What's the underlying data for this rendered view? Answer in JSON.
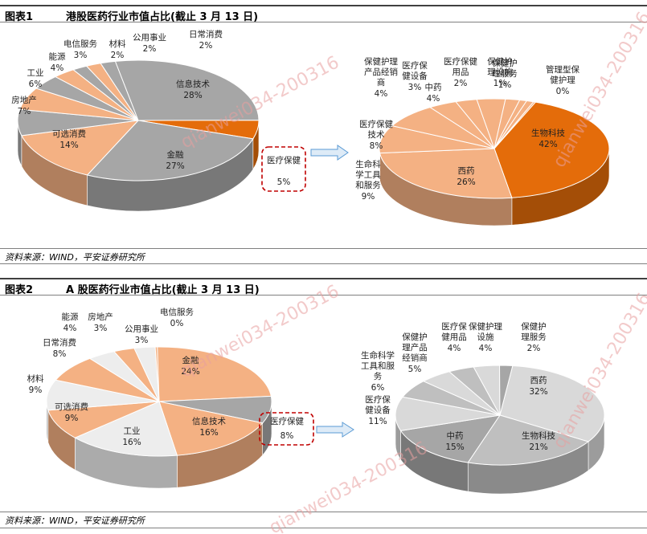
{
  "figure1": {
    "number": "图表1",
    "title": "港股医药行业市值占比(截止 3 月 13 日)",
    "source": "资料来源：WIND，平安证券研究所"
  },
  "figure2": {
    "number": "图表2",
    "title": "A 股医药行业市值占比(截止 3 月 13 日)",
    "source": "资料来源：WIND，平安证券研究所"
  },
  "watermark": "qianwei034-200316",
  "colors": {
    "orange_dark": "#E46C0A",
    "orange_light": "#F4B183",
    "gray": "#A6A6A6",
    "light_gray": "#D9D9D9",
    "near_white": "#EDEDED",
    "callout": "#C00000",
    "arrow": "#9DC3E6"
  },
  "chart_data": [
    {
      "type": "pie",
      "name": "hk_industry",
      "callout": "医疗保健 5%",
      "slices": [
        {
          "label": "信息技术",
          "value": 28,
          "text": "28%",
          "color": "#A6A6A6"
        },
        {
          "label": "医疗保健",
          "value": 5,
          "text": "5%",
          "color": "#E46C0A"
        },
        {
          "label": "金融",
          "value": 27,
          "text": "27%",
          "color": "#A6A6A6"
        },
        {
          "label": "可选消费",
          "value": 14,
          "text": "14%",
          "color": "#F4B183"
        },
        {
          "label": "房地产",
          "value": 7,
          "text": "7%",
          "color": "#A6A6A6"
        },
        {
          "label": "工业",
          "value": 6,
          "text": "6%",
          "color": "#F4B183"
        },
        {
          "label": "能源",
          "value": 4,
          "text": "4%",
          "color": "#A6A6A6"
        },
        {
          "label": "电信服务",
          "value": 3,
          "text": "3%",
          "color": "#F4B183"
        },
        {
          "label": "材料",
          "value": 2,
          "text": "2%",
          "color": "#A6A6A6"
        },
        {
          "label": "公用事业",
          "value": 2,
          "text": "2%",
          "color": "#F4B183"
        },
        {
          "label": "日常消费",
          "value": 2,
          "text": "2%",
          "color": "#A6A6A6"
        }
      ]
    },
    {
      "type": "pie",
      "name": "hk_healthcare",
      "slices": [
        {
          "label": "生物科技",
          "value": 42,
          "text": "42%",
          "color": "#E46C0A"
        },
        {
          "label": "西药",
          "value": 26,
          "text": "26%",
          "color": "#F4B183"
        },
        {
          "label": "生命科学工具和服务",
          "value": 9,
          "text": "9%",
          "color": "#F4B183"
        },
        {
          "label": "医疗保健技术",
          "value": 8,
          "text": "8%",
          "color": "#F4B183"
        },
        {
          "label": "保健护理产品经销商",
          "value": 4,
          "text": "4%",
          "color": "#F4B183"
        },
        {
          "label": "医疗保健设备",
          "value": 3,
          "text": "3%",
          "color": "#F4B183"
        },
        {
          "label": "中药",
          "value": 4,
          "text": "4%",
          "color": "#F4B183"
        },
        {
          "label": "医疗保健用品",
          "value": 2,
          "text": "2%",
          "color": "#F4B183"
        },
        {
          "label": "保健护理设施",
          "value": 1,
          "text": "1%",
          "color": "#F4B183"
        },
        {
          "label": "保健护理服务",
          "value": 1,
          "text": "1%",
          "color": "#F4B183"
        },
        {
          "label": "管理型保健护理",
          "value": 0,
          "text": "0%",
          "color": "#F4B183"
        }
      ]
    },
    {
      "type": "pie",
      "name": "a_industry",
      "callout": "医疗保健 8%",
      "slices": [
        {
          "label": "金融",
          "value": 24,
          "text": "24%",
          "color": "#F4B183"
        },
        {
          "label": "医疗保健",
          "value": 8,
          "text": "8%",
          "color": "#A6A6A6"
        },
        {
          "label": "信息技术",
          "value": 16,
          "text": "16%",
          "color": "#F4B183"
        },
        {
          "label": "工业",
          "value": 16,
          "text": "16%",
          "color": "#EDEDED"
        },
        {
          "label": "可选消费",
          "value": 9,
          "text": "9%",
          "color": "#F4B183"
        },
        {
          "label": "材料",
          "value": 9,
          "text": "9%",
          "color": "#EDEDED"
        },
        {
          "label": "日常消费",
          "value": 8,
          "text": "8%",
          "color": "#F4B183"
        },
        {
          "label": "能源",
          "value": 4,
          "text": "4%",
          "color": "#EDEDED"
        },
        {
          "label": "房地产",
          "value": 3,
          "text": "3%",
          "color": "#F4B183"
        },
        {
          "label": "公用事业",
          "value": 3,
          "text": "3%",
          "color": "#EDEDED"
        },
        {
          "label": "电信服务",
          "value": 0,
          "text": "0%",
          "color": "#F4B183"
        }
      ]
    },
    {
      "type": "pie",
      "name": "a_healthcare",
      "slices": [
        {
          "label": "西药",
          "value": 32,
          "text": "32%",
          "color": "#D9D9D9"
        },
        {
          "label": "生物科技",
          "value": 21,
          "text": "21%",
          "color": "#BFBFBF"
        },
        {
          "label": "中药",
          "value": 15,
          "text": "15%",
          "color": "#A6A6A6"
        },
        {
          "label": "医疗保健设备",
          "value": 11,
          "text": "11%",
          "color": "#D9D9D9"
        },
        {
          "label": "生命科学工具和服务",
          "value": 6,
          "text": "6%",
          "color": "#BFBFBF"
        },
        {
          "label": "保健护理产品经销商",
          "value": 5,
          "text": "5%",
          "color": "#D9D9D9"
        },
        {
          "label": "医疗保健用品",
          "value": 4,
          "text": "4%",
          "color": "#BFBFBF"
        },
        {
          "label": "保健护理设施",
          "value": 4,
          "text": "4%",
          "color": "#D9D9D9"
        },
        {
          "label": "保健护理服务",
          "value": 2,
          "text": "2%",
          "color": "#A6A6A6"
        }
      ]
    }
  ]
}
